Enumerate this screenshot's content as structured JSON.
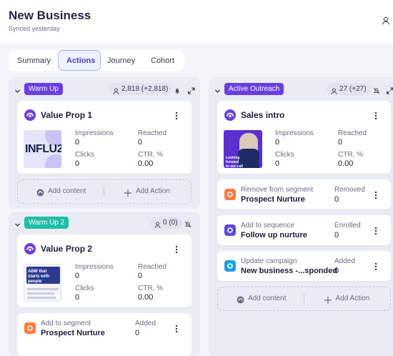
{
  "header": {
    "title": "New Business",
    "subtitle": "Synced yesterday"
  },
  "tabs": [
    "Summary",
    "Actions",
    "Journey",
    "Cohort"
  ],
  "groups": [
    {
      "badge": "Warm Up",
      "count": "2,818 (+2,818)",
      "content": {
        "title": "Value Prop 1",
        "thumbnail_text": "INFLU2",
        "stats": [
          {
            "label": "Impressions",
            "value": 0
          },
          {
            "label": "Reached",
            "value": 0
          },
          {
            "label": "Clicks",
            "value": 0
          },
          {
            "label": "CTR, %",
            "value": "0.00"
          }
        ]
      },
      "actions": [],
      "add_buttons": [
        "Add content",
        "Add Action"
      ]
    },
    {
      "badge": "Warm Up 2",
      "count": "0 (0)",
      "content": {
        "title": "Value Prop 2",
        "thumbnail_text": "ABM that starts with people",
        "stats": [
          {
            "label": "Impressions",
            "value": 0
          },
          {
            "label": "Reached",
            "value": 0
          },
          {
            "label": "Clicks",
            "value": 0
          },
          {
            "label": "CTR, %",
            "value": "0.00"
          }
        ]
      },
      "actions": [
        {
          "label": "Add to segment",
          "target": "Prospect Nurture",
          "stat_label": "Added",
          "stat_value": 0
        }
      ]
    },
    {
      "badge": "Active Outreach",
      "count": "27 (+27)",
      "content": {
        "title": "Sales intro",
        "thumbnail_text": "Looking forward to our call",
        "stats": [
          {
            "label": "Impressions",
            "value": 0
          },
          {
            "label": "Reached",
            "value": 0
          },
          {
            "label": "Clicks",
            "value": 0
          },
          {
            "label": "CTR, %",
            "value": "0.00"
          }
        ]
      },
      "actions": [
        {
          "label": "Remove from segment",
          "target": "Prospect Nurture",
          "stat_label": "Removed",
          "stat_value": 0
        },
        {
          "label": "Add to sequence",
          "target": "Follow up nurture",
          "stat_label": "Enrolled",
          "stat_value": 0
        },
        {
          "label": "Update campaign",
          "target": "New business -...sponded",
          "stat_label": "Added",
          "stat_value": 0
        }
      ],
      "add_buttons": [
        "Add content",
        "Add Action"
      ]
    }
  ]
}
